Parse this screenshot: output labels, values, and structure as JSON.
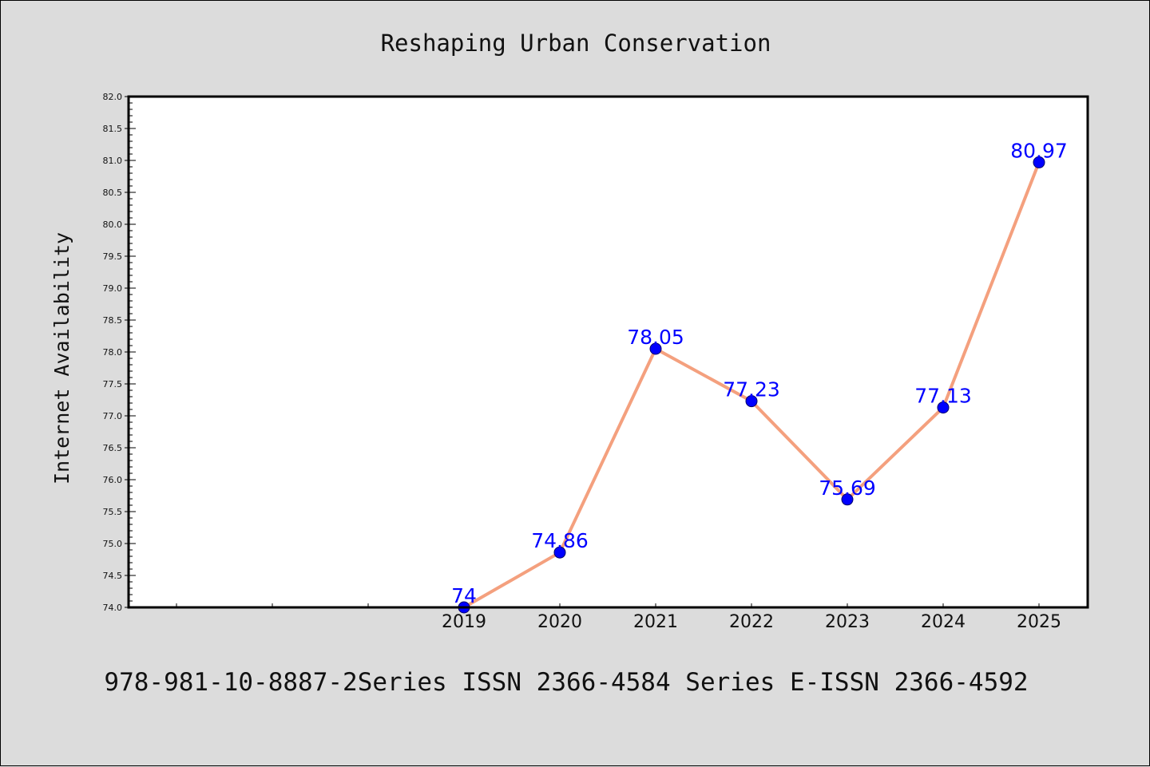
{
  "chart_data": {
    "type": "line",
    "title": "Reshaping Urban Conservation",
    "xlabel": "",
    "ylabel": "Internet Availability",
    "categories": [
      "2019",
      "2020",
      "2021",
      "2022",
      "2023",
      "2024",
      "2025"
    ],
    "series": [
      {
        "values": [
          74,
          74.86,
          78.05,
          77.23,
          75.69,
          77.13,
          80.97
        ],
        "labels": [
          "74",
          "74.86",
          "78.05",
          "77.23",
          "75.69",
          "77.13",
          "80.97"
        ]
      }
    ],
    "ylim": [
      74.0,
      82.0
    ],
    "yticks": [
      "74.0",
      "74.5",
      "75.0",
      "75.5",
      "76.0",
      "76.5",
      "77.0",
      "77.5",
      "78.0",
      "78.5",
      "79.0",
      "79.5",
      "80.0",
      "80.5",
      "81.0",
      "81.5",
      "82.0"
    ],
    "grid": false,
    "legend": "none",
    "colors": {
      "line": "#f4a07e",
      "marker": "#0000ff",
      "data_label": "#0000ff",
      "plot_background": "#ffffff",
      "figure_background": "#dcdcdc"
    }
  },
  "footer": {
    "text": "978-981-10-8887-2Series ISSN 2366-4584 Series E-ISSN 2366-4592"
  }
}
